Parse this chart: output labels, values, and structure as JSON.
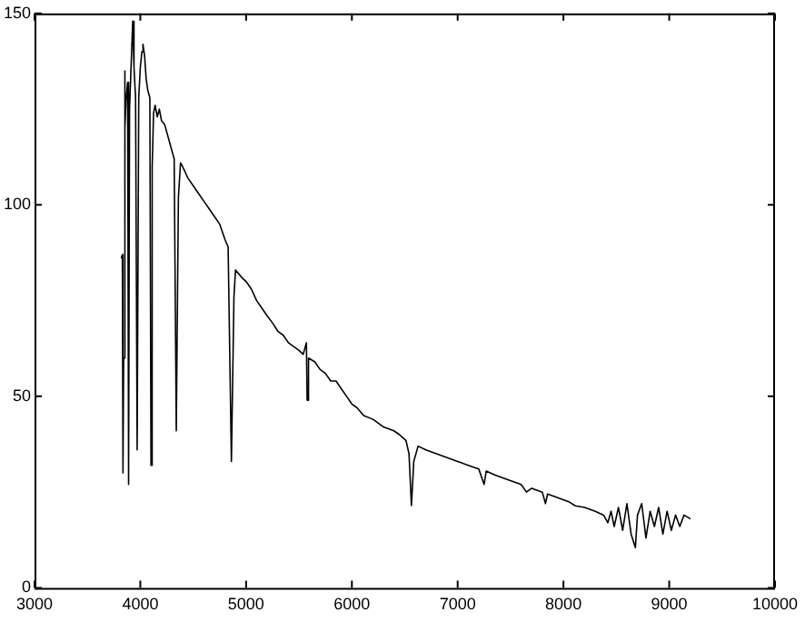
{
  "chart_data": {
    "type": "line",
    "color": "#000000",
    "marker": "none",
    "grid": false,
    "xlim": [
      3000,
      10000
    ],
    "xticks": [
      3000,
      4000,
      5000,
      6000,
      7000,
      8000,
      9000,
      10000
    ],
    "ylim": [
      0,
      150
    ],
    "yticks": [
      0,
      50,
      100,
      150
    ],
    "x": [
      3820,
      3830,
      3836,
      3842,
      3850,
      3858,
      3866,
      3880,
      3889,
      3898,
      3915,
      3928,
      3940,
      3955,
      3970,
      3985,
      4000,
      4015,
      4025,
      4040,
      4055,
      4070,
      4090,
      4101,
      4112,
      4125,
      4140,
      4160,
      4180,
      4200,
      4230,
      4260,
      4290,
      4320,
      4340,
      4360,
      4380,
      4400,
      4450,
      4500,
      4550,
      4600,
      4650,
      4700,
      4750,
      4800,
      4830,
      4861,
      4885,
      4900,
      4930,
      4960,
      5000,
      5050,
      5100,
      5150,
      5200,
      5254,
      5300,
      5350,
      5400,
      5450,
      5500,
      5540,
      5570,
      5577,
      5590,
      5650,
      5700,
      5750,
      5800,
      5850,
      5900,
      5950,
      6000,
      6050,
      6111,
      6200,
      6300,
      6397,
      6450,
      6511,
      6540,
      6563,
      6585,
      6626,
      6700,
      6800,
      6900,
      7000,
      7100,
      7200,
      7250,
      7270,
      7350,
      7450,
      7540,
      7600,
      7650,
      7700,
      7800,
      7830,
      7850,
      7950,
      8050,
      8112,
      8200,
      8300,
      8380,
      8420,
      8450,
      8480,
      8520,
      8560,
      8600,
      8640,
      8680,
      8700,
      8740,
      8780,
      8820,
      8860,
      8900,
      8940,
      8980,
      9020,
      9060,
      9100,
      9140,
      9200
    ],
    "values": [
      86,
      87,
      30,
      60,
      135,
      120,
      128,
      132,
      27,
      125,
      138,
      148,
      136,
      128,
      36,
      128,
      136,
      140,
      142,
      139,
      133,
      130,
      128,
      32,
      110,
      124,
      126,
      123,
      125,
      122,
      121,
      118,
      115,
      112,
      41,
      102,
      111,
      110,
      107,
      105,
      103,
      101,
      99,
      97,
      95,
      91,
      89,
      33,
      76,
      83,
      82,
      81,
      80,
      78,
      75,
      73,
      71,
      69,
      67,
      66,
      64,
      63,
      62,
      61,
      64,
      49,
      60,
      59,
      57,
      56,
      54,
      54,
      52,
      50,
      48,
      47,
      45,
      44,
      42,
      41,
      40,
      38.5,
      35,
      21.5,
      33,
      37,
      36,
      35,
      34,
      33,
      32,
      31,
      27,
      30.5,
      29.5,
      28.5,
      27.6,
      27,
      25,
      26,
      25,
      22,
      24.5,
      23.5,
      22.5,
      21.4,
      21,
      20,
      19,
      17,
      20,
      16,
      21,
      15,
      22,
      14,
      10.5,
      19,
      22,
      13,
      20,
      16,
      21,
      14,
      20,
      15,
      19,
      16,
      19,
      18
    ]
  }
}
